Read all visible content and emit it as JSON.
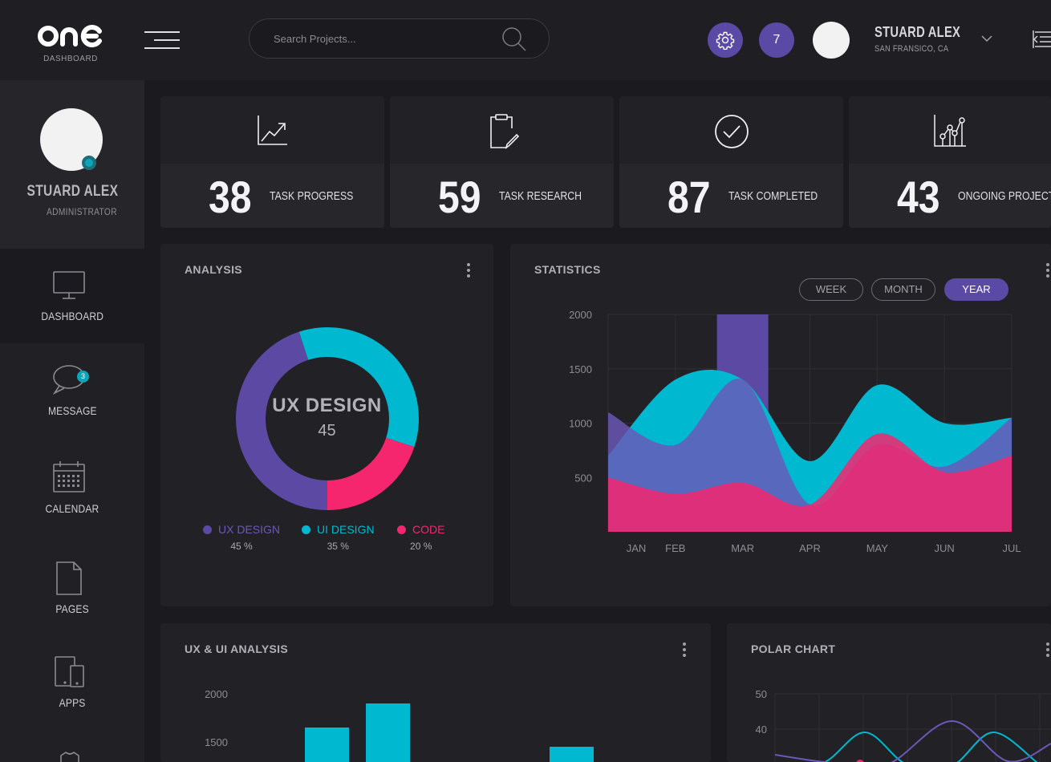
{
  "app": {
    "logo_text": "one",
    "logo_sub": "DASHBOARD"
  },
  "header": {
    "search_placeholder": "Search Projects...",
    "notification_count": "7",
    "user_name": "STUARD ALEX",
    "user_location": "SAN FRANSICO, CA"
  },
  "sidebar": {
    "name": "STUARD ALEX",
    "role": "ADMINISTRATOR",
    "items": [
      {
        "label": "DASHBOARD",
        "icon": "monitor-icon"
      },
      {
        "label": "MESSAGE",
        "icon": "chat-bubble-icon",
        "badge": "3"
      },
      {
        "label": "CALENDAR",
        "icon": "calendar-icon"
      },
      {
        "label": "PAGES",
        "icon": "page-icon"
      },
      {
        "label": "APPS",
        "icon": "devices-icon"
      }
    ]
  },
  "stats": [
    {
      "value": "38",
      "label": "TASK PROGRESS",
      "icon": "trend-chart-icon"
    },
    {
      "value": "59",
      "label": "TASK RESEARCH",
      "icon": "clipboard-pen-icon"
    },
    {
      "value": "87",
      "label": "TASK COMPLETED",
      "icon": "check-circle-icon"
    },
    {
      "value": "43",
      "label": "ONGOING PROJECT",
      "icon": "scatter-chart-icon"
    }
  ],
  "colors": {
    "purple": "#5b49a4",
    "cyan": "#00b9d1",
    "pink": "#f5266e",
    "accent": "#5a4aa6"
  },
  "analysis": {
    "title": "ANALYSIS",
    "center_label": "UX DESIGN",
    "center_value": "45",
    "legend": [
      {
        "name": "UX DESIGN",
        "pct": "45 %"
      },
      {
        "name": "UI DESIGN",
        "pct": "35 %"
      },
      {
        "name": "CODE",
        "pct": "20 %"
      }
    ]
  },
  "statistics": {
    "title": "STATISTICS",
    "toggles": [
      "WEEK",
      "MONTH",
      "YEAR"
    ],
    "active_toggle": "YEAR"
  },
  "uxui": {
    "title": "UX & UI ANALYSIS"
  },
  "polar": {
    "title": "POLAR CHART"
  },
  "chart_data": [
    {
      "type": "pie",
      "title": "ANALYSIS",
      "categories": [
        "UX DESIGN",
        "UI DESIGN",
        "CODE"
      ],
      "values": [
        45,
        35,
        20
      ]
    },
    {
      "type": "area",
      "title": "STATISTICS",
      "categories": [
        "JAN",
        "FEB",
        "MAR",
        "APR",
        "MAY",
        "JUN",
        "JUL"
      ],
      "ylim": [
        0,
        2000
      ],
      "yticks": [
        2000,
        1500,
        1000,
        500
      ],
      "series": [
        {
          "color": "#00b9d1",
          "values": [
            700,
            1400,
            1400,
            650,
            1350,
            1000,
            1050
          ]
        },
        {
          "color": "#6b58b8",
          "values": [
            1100,
            800,
            1400,
            250,
            800,
            600,
            1050
          ]
        },
        {
          "color": "#f5266e",
          "values": [
            500,
            350,
            450,
            250,
            900,
            550,
            700
          ]
        }
      ],
      "bar_overlay": {
        "category": "MAR",
        "value": 2000,
        "color": "#5b49a4"
      }
    },
    {
      "type": "bar",
      "title": "UX & UI ANALYSIS",
      "yticks": [
        2000,
        1500
      ],
      "values": [
        1650,
        1900,
        1450
      ]
    },
    {
      "type": "line",
      "title": "POLAR CHART",
      "yticks": [
        50,
        40
      ]
    }
  ]
}
